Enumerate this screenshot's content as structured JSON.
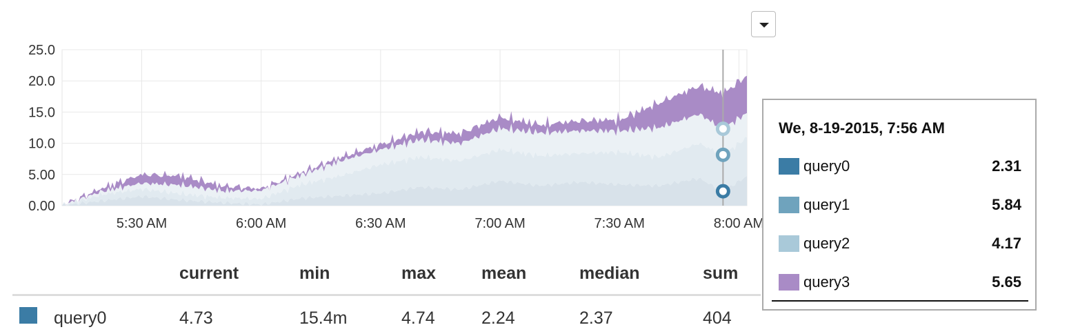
{
  "chart_data": {
    "type": "area",
    "stacked": true,
    "yticks": [
      "0.00",
      "5.00",
      "10.0",
      "15.0",
      "20.0",
      "25.0"
    ],
    "ylim": [
      0,
      25
    ],
    "xlim_minutes": [
      "5:10 AM",
      "8:02 AM"
    ],
    "xticks": [
      "5:30 AM",
      "6:00 AM",
      "6:30 AM",
      "7:00 AM",
      "7:30 AM",
      "8:00 AM"
    ],
    "grid": true,
    "hover_time": "7:56 AM",
    "series": [
      {
        "name": "query0",
        "color": "#3b7ca5",
        "x": [
          "5:10 AM",
          "5:20 AM",
          "5:30 AM",
          "5:40 AM",
          "5:50 AM",
          "6:00 AM",
          "6:10 AM",
          "6:20 AM",
          "6:30 AM",
          "6:40 AM",
          "6:50 AM",
          "7:00 AM",
          "7:10 AM",
          "7:20 AM",
          "7:30 AM",
          "7:40 AM",
          "7:50 AM",
          "7:56 AM",
          "8:02 AM"
        ],
        "values": [
          0.0,
          0.8,
          1.5,
          0.9,
          0.5,
          0.2,
          1.2,
          1.6,
          2.0,
          3.0,
          2.6,
          4.0,
          3.2,
          3.8,
          3.4,
          3.2,
          4.4,
          2.31,
          4.73
        ]
      },
      {
        "name": "query1",
        "color": "#6fa3bd",
        "x": [
          "5:10 AM",
          "5:20 AM",
          "5:30 AM",
          "5:40 AM",
          "5:50 AM",
          "6:00 AM",
          "6:10 AM",
          "6:20 AM",
          "6:30 AM",
          "6:40 AM",
          "6:50 AM",
          "7:00 AM",
          "7:10 AM",
          "7:20 AM",
          "7:30 AM",
          "7:40 AM",
          "7:50 AM",
          "7:56 AM",
          "8:02 AM"
        ],
        "values": [
          0.0,
          1.0,
          1.2,
          1.0,
          0.8,
          0.9,
          2.2,
          3.2,
          4.6,
          4.8,
          4.6,
          5.0,
          4.8,
          4.6,
          5.2,
          4.6,
          5.6,
          5.84,
          6.2
        ]
      },
      {
        "name": "query2",
        "color": "#a9c9d9",
        "x": [
          "5:10 AM",
          "5:20 AM",
          "5:30 AM",
          "5:40 AM",
          "5:50 AM",
          "6:00 AM",
          "6:10 AM",
          "6:20 AM",
          "6:30 AM",
          "6:40 AM",
          "6:50 AM",
          "7:00 AM",
          "7:10 AM",
          "7:20 AM",
          "7:30 AM",
          "7:40 AM",
          "7:50 AM",
          "7:56 AM",
          "8:02 AM"
        ],
        "values": [
          0.0,
          0.5,
          0.9,
          1.4,
          1.1,
          1.3,
          1.5,
          2.4,
          2.4,
          2.8,
          2.8,
          3.4,
          3.7,
          3.6,
          3.4,
          4.7,
          4.7,
          4.17,
          3.9
        ]
      },
      {
        "name": "query3",
        "color": "#a98bc6",
        "x": [
          "5:10 AM",
          "5:20 AM",
          "5:30 AM",
          "5:40 AM",
          "5:50 AM",
          "6:00 AM",
          "6:10 AM",
          "6:20 AM",
          "6:30 AM",
          "6:40 AM",
          "6:50 AM",
          "7:00 AM",
          "7:10 AM",
          "7:20 AM",
          "7:30 AM",
          "7:40 AM",
          "7:50 AM",
          "7:56 AM",
          "8:02 AM"
        ],
        "values": [
          0.0,
          0.5,
          1.4,
          1.5,
          0.8,
          0.3,
          0.4,
          0.6,
          0.8,
          1.3,
          1.6,
          1.8,
          1.3,
          1.6,
          1.8,
          4.0,
          4.5,
          5.65,
          6.0
        ]
      }
    ]
  },
  "tooltip": {
    "title": "We, 8-19-2015, 7:56 AM",
    "rows": [
      {
        "name": "query0",
        "value": "2.31",
        "color": "#3b7ca5"
      },
      {
        "name": "query1",
        "value": "5.84",
        "color": "#6fa3bd"
      },
      {
        "name": "query2",
        "value": "4.17",
        "color": "#a9c9d9"
      },
      {
        "name": "query3",
        "value": "5.65",
        "color": "#a98bc6"
      }
    ]
  },
  "stats": {
    "headers": [
      "current",
      "min",
      "max",
      "mean",
      "median",
      "sum"
    ],
    "rows": [
      {
        "name": "query0",
        "color": "#3b7ca5",
        "values": [
          "4.73",
          "15.4m",
          "4.74",
          "2.24",
          "2.37",
          "404"
        ]
      }
    ]
  }
}
